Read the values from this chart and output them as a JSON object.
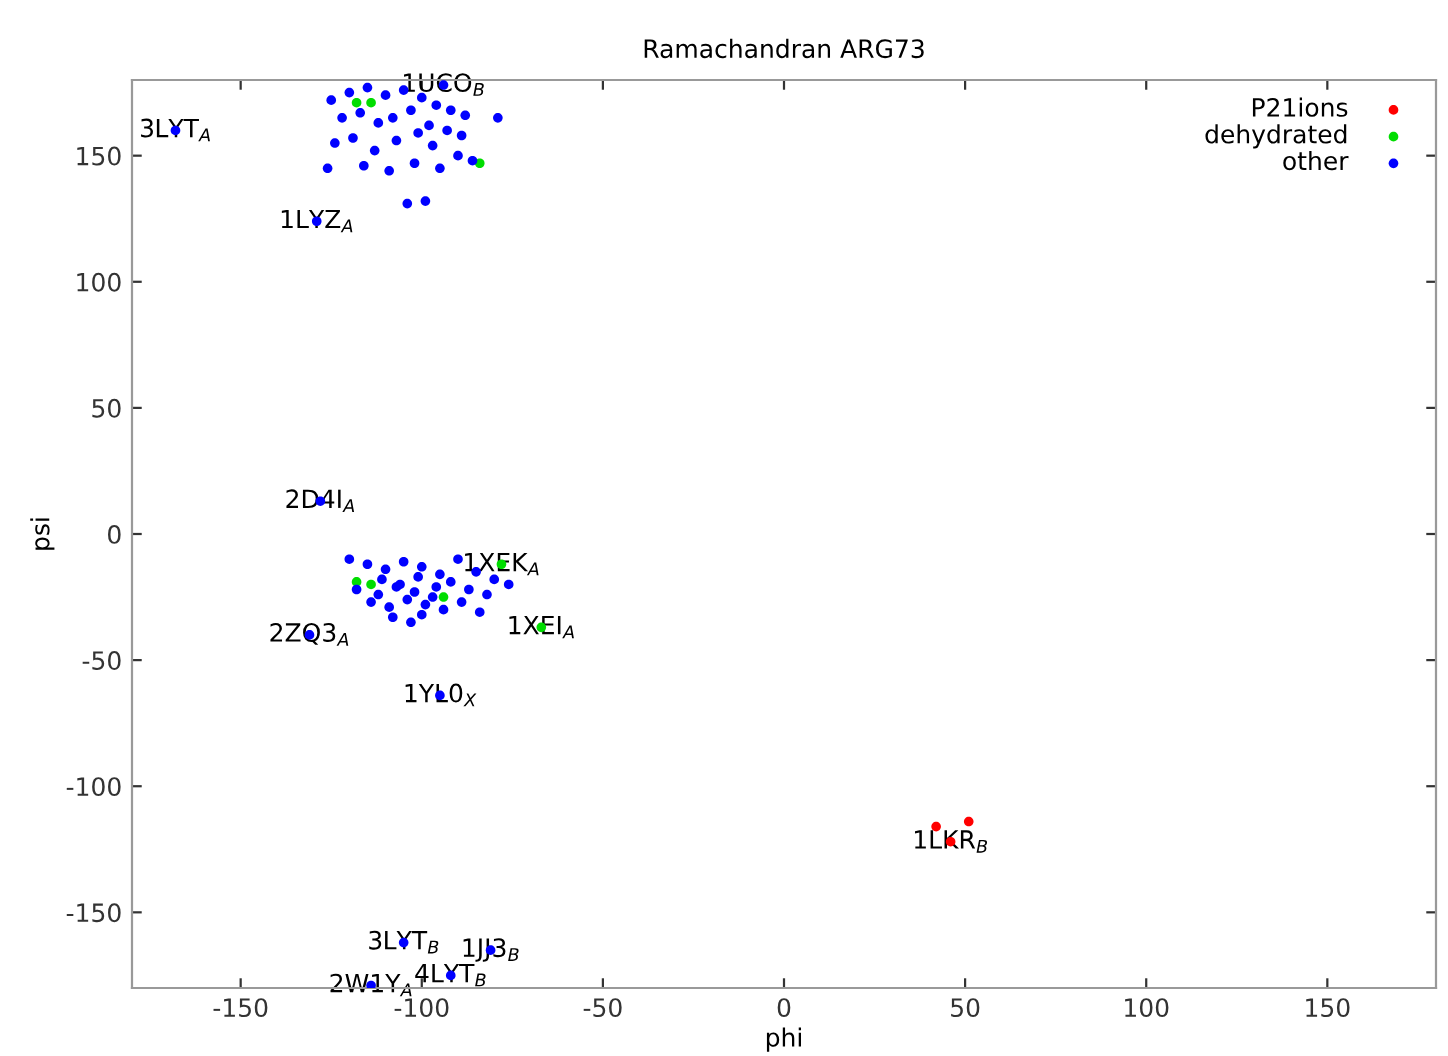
{
  "chart_data": {
    "type": "scatter",
    "title": "Ramachandran ARG73",
    "xlabel": "phi",
    "ylabel": "psi",
    "xlim": [
      -180,
      180
    ],
    "ylim": [
      -180,
      180
    ],
    "xticks": [
      -150,
      -100,
      -50,
      0,
      50,
      100,
      150
    ],
    "yticks": [
      -150,
      -100,
      -50,
      0,
      50,
      100,
      150
    ],
    "grid": false,
    "legend": "top right",
    "marker": "circle",
    "series": [
      {
        "name": "P21ions",
        "color": "#ff0000",
        "x": [
          42,
          51,
          46
        ],
        "values": [
          -116,
          -114,
          -122
        ]
      },
      {
        "name": "dehydrated",
        "color": "#00dd00",
        "x": [
          -84,
          -118,
          -114,
          -118,
          -114,
          -94,
          -78,
          -67
        ],
        "values": [
          147,
          171,
          171,
          -19,
          -20,
          -25,
          -12,
          -37
        ]
      },
      {
        "name": "other",
        "color": "#0000ff",
        "x": [
          -168,
          -129,
          -128,
          -131,
          -95,
          -105,
          -81,
          -92,
          -114,
          -94,
          -79,
          -125,
          -120,
          -115,
          -110,
          -105,
          -100,
          -96,
          -92,
          -88,
          -122,
          -117,
          -112,
          -108,
          -103,
          -98,
          -93,
          -89,
          -124,
          -119,
          -113,
          -107,
          -101,
          -97,
          -90,
          -86,
          -126,
          -116,
          -109,
          -102,
          -95,
          -104,
          -99,
          -120,
          -115,
          -110,
          -105,
          -100,
          -95,
          -90,
          -85,
          -80,
          -76,
          -118,
          -112,
          -107,
          -102,
          -97,
          -92,
          -87,
          -82,
          -114,
          -109,
          -104,
          -99,
          -94,
          -89,
          -84,
          -111,
          -106,
          -101,
          -96,
          -108,
          -103,
          -100
        ],
        "values": [
          160,
          124,
          13,
          -40,
          -64,
          -162,
          -165,
          -175,
          -179,
          178,
          165,
          172,
          175,
          177,
          174,
          176,
          173,
          170,
          168,
          166,
          165,
          167,
          163,
          165,
          168,
          162,
          160,
          158,
          155,
          157,
          152,
          156,
          159,
          154,
          150,
          148,
          145,
          146,
          144,
          147,
          145,
          131,
          132,
          -10,
          -12,
          -14,
          -11,
          -13,
          -16,
          -10,
          -15,
          -18,
          -20,
          -22,
          -24,
          -21,
          -23,
          -25,
          -19,
          -22,
          -24,
          -27,
          -29,
          -26,
          -28,
          -30,
          -27,
          -31,
          -18,
          -20,
          -17,
          -21,
          -33,
          -35,
          -32
        ]
      }
    ],
    "annotations": [
      {
        "text": "3LYT$_{A}$",
        "x": -168,
        "y": 160
      },
      {
        "text": "1LYZ$_{A}$",
        "x": -129,
        "y": 124
      },
      {
        "text": "2D4I$_{A}$",
        "x": -128,
        "y": 13
      },
      {
        "text": "1XEK$_{A}$",
        "x": -78,
        "y": -12
      },
      {
        "text": "1XEI$_{A}$",
        "x": -67,
        "y": -37
      },
      {
        "text": "2ZQ3$_{A}$",
        "x": -131,
        "y": -40
      },
      {
        "text": "1YL0$_{X}$",
        "x": -95,
        "y": -64
      },
      {
        "text": "3LYT$_{B}$",
        "x": -105,
        "y": -162
      },
      {
        "text": "1JJ3$_{B}$",
        "x": -81,
        "y": -165
      },
      {
        "text": "4LYT$_{B}$",
        "x": -92,
        "y": -175
      },
      {
        "text": "2W1Y$_{A}$",
        "x": -114,
        "y": -179
      },
      {
        "text": "1UCO$_{B}$",
        "x": -94,
        "y": 178
      },
      {
        "text": "1LKR$_{B}$",
        "x": 46,
        "y": -122
      }
    ]
  }
}
